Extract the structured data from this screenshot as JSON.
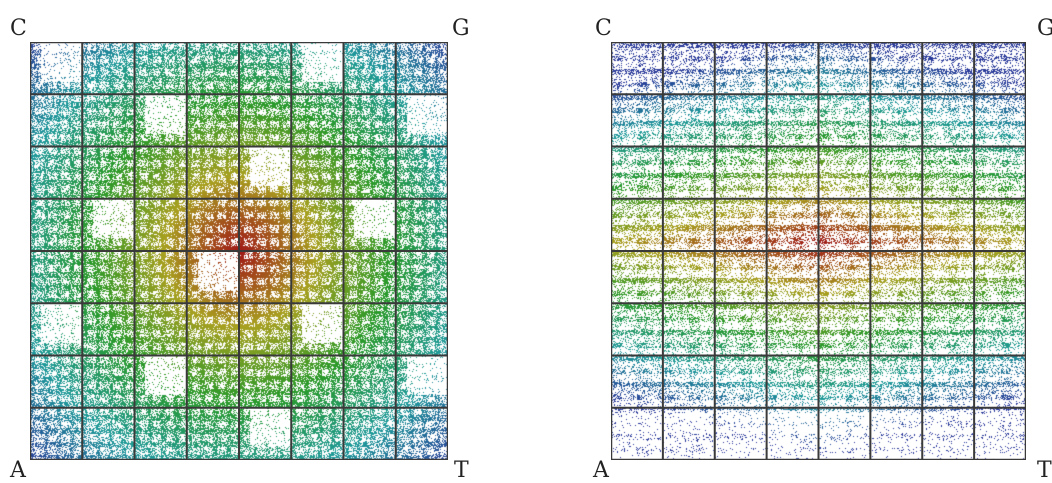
{
  "panels": [
    {
      "id": "left",
      "corners": {
        "top_left": "C",
        "top_right": "G",
        "bottom_left": "A",
        "bottom_right": "T"
      },
      "grid_divisions": 8,
      "style": "fractal-radial"
    },
    {
      "id": "right",
      "corners": {
        "top_left": "C",
        "top_right": "G",
        "bottom_left": "A",
        "bottom_right": "T"
      },
      "grid_divisions": 8,
      "style": "fractal-banded"
    }
  ],
  "colors": {
    "blue": "#2a3a9a",
    "teal": "#1f9a9a",
    "green": "#2a9a2a",
    "yellow": "#a8a020",
    "red": "#a01818",
    "grid_line": "#3a3a3a"
  }
}
